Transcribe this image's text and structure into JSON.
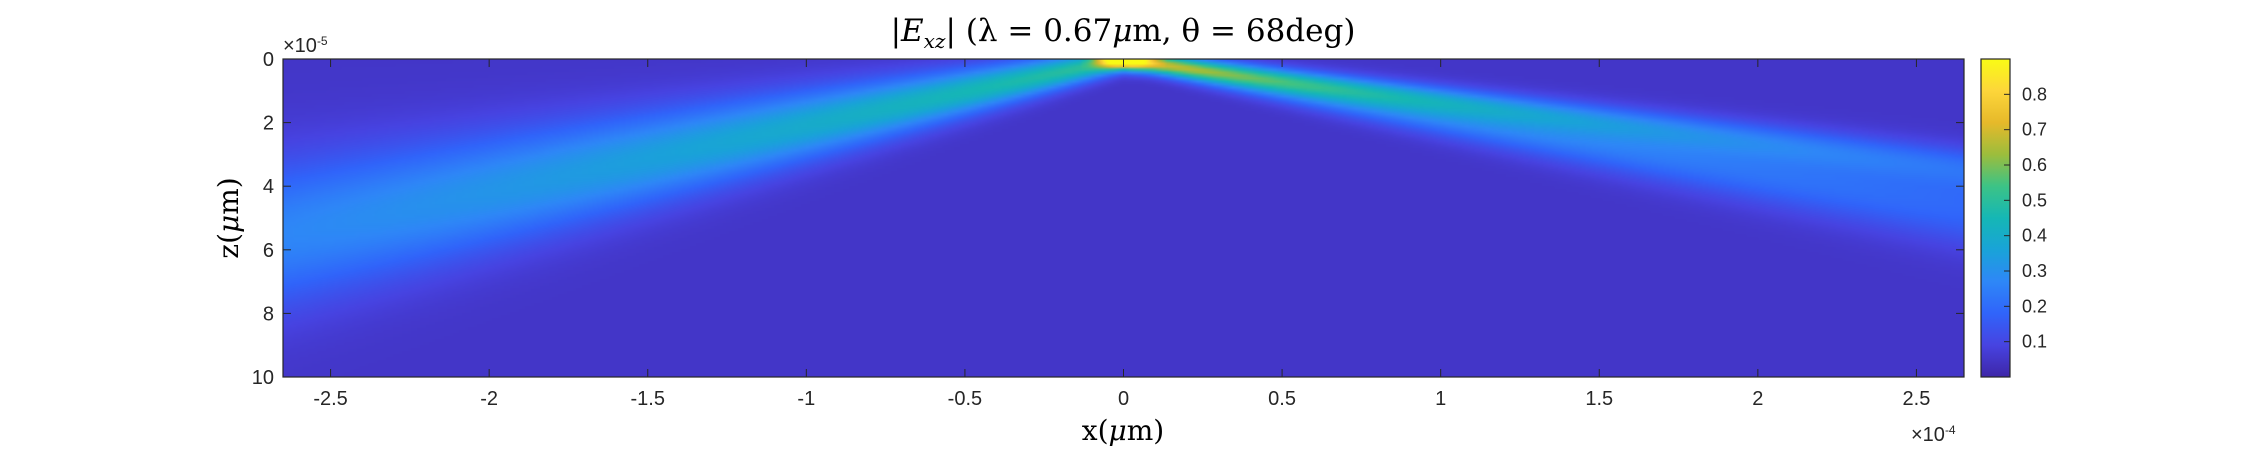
{
  "chart_data": {
    "type": "heatmap",
    "title_parts": {
      "abs_open": "|E",
      "subscript": "xz",
      "abs_close": "| (λ = 0.67",
      "mu": "μ",
      "mid": "m, θ = 68deg)"
    },
    "xlabel_parts": {
      "pre": "x(",
      "mu": "μ",
      "post": "m)"
    },
    "ylabel_parts": {
      "pre": "z(",
      "mu": "μ",
      "post": "m)"
    },
    "xlim": [
      -2.65,
      2.65
    ],
    "ylim": [
      0,
      10
    ],
    "x_ticks": [
      "-2.5",
      "-2",
      "-1.5",
      "-1",
      "-0.5",
      "0",
      "0.5",
      "1",
      "1.5",
      "2",
      "2.5"
    ],
    "x_tick_values": [
      -2.5,
      -2,
      -1.5,
      -1,
      -0.5,
      0,
      0.5,
      1,
      1.5,
      2,
      2.5
    ],
    "y_ticks": [
      "0",
      "2",
      "4",
      "6",
      "8",
      "10"
    ],
    "y_tick_values": [
      0,
      2,
      4,
      6,
      8,
      10
    ],
    "x_exponent": {
      "base": "×10",
      "power": "-4"
    },
    "y_exponent": {
      "base": "×10",
      "power": "-5"
    },
    "colorbar": {
      "colormap": "parula",
      "range": [
        0,
        0.9
      ],
      "ticks": [
        "0.1",
        "0.2",
        "0.3",
        "0.4",
        "0.5",
        "0.6",
        "0.7",
        "0.8"
      ],
      "tick_values": [
        0.1,
        0.2,
        0.3,
        0.4,
        0.5,
        0.6,
        0.7,
        0.8
      ]
    },
    "background_value": 0.05,
    "beams": [
      {
        "name": "left beam",
        "x_end": -2.65,
        "z_end": 5.5,
        "peak": 0.55,
        "tail": 0.27,
        "width_start": 0.25,
        "width_end": 1.6
      },
      {
        "name": "right beam (upper)",
        "x_end": 2.65,
        "z_end": 3.4,
        "peak": 0.42,
        "tail": 0.18,
        "width_start": 0.2,
        "width_end": 0.45
      },
      {
        "name": "right beam (lower)",
        "x_end": 2.65,
        "z_end": 4.7,
        "peak": 0.4,
        "tail": 0.19,
        "width_start": 0.2,
        "width_end": 0.85
      }
    ],
    "grid": false
  }
}
